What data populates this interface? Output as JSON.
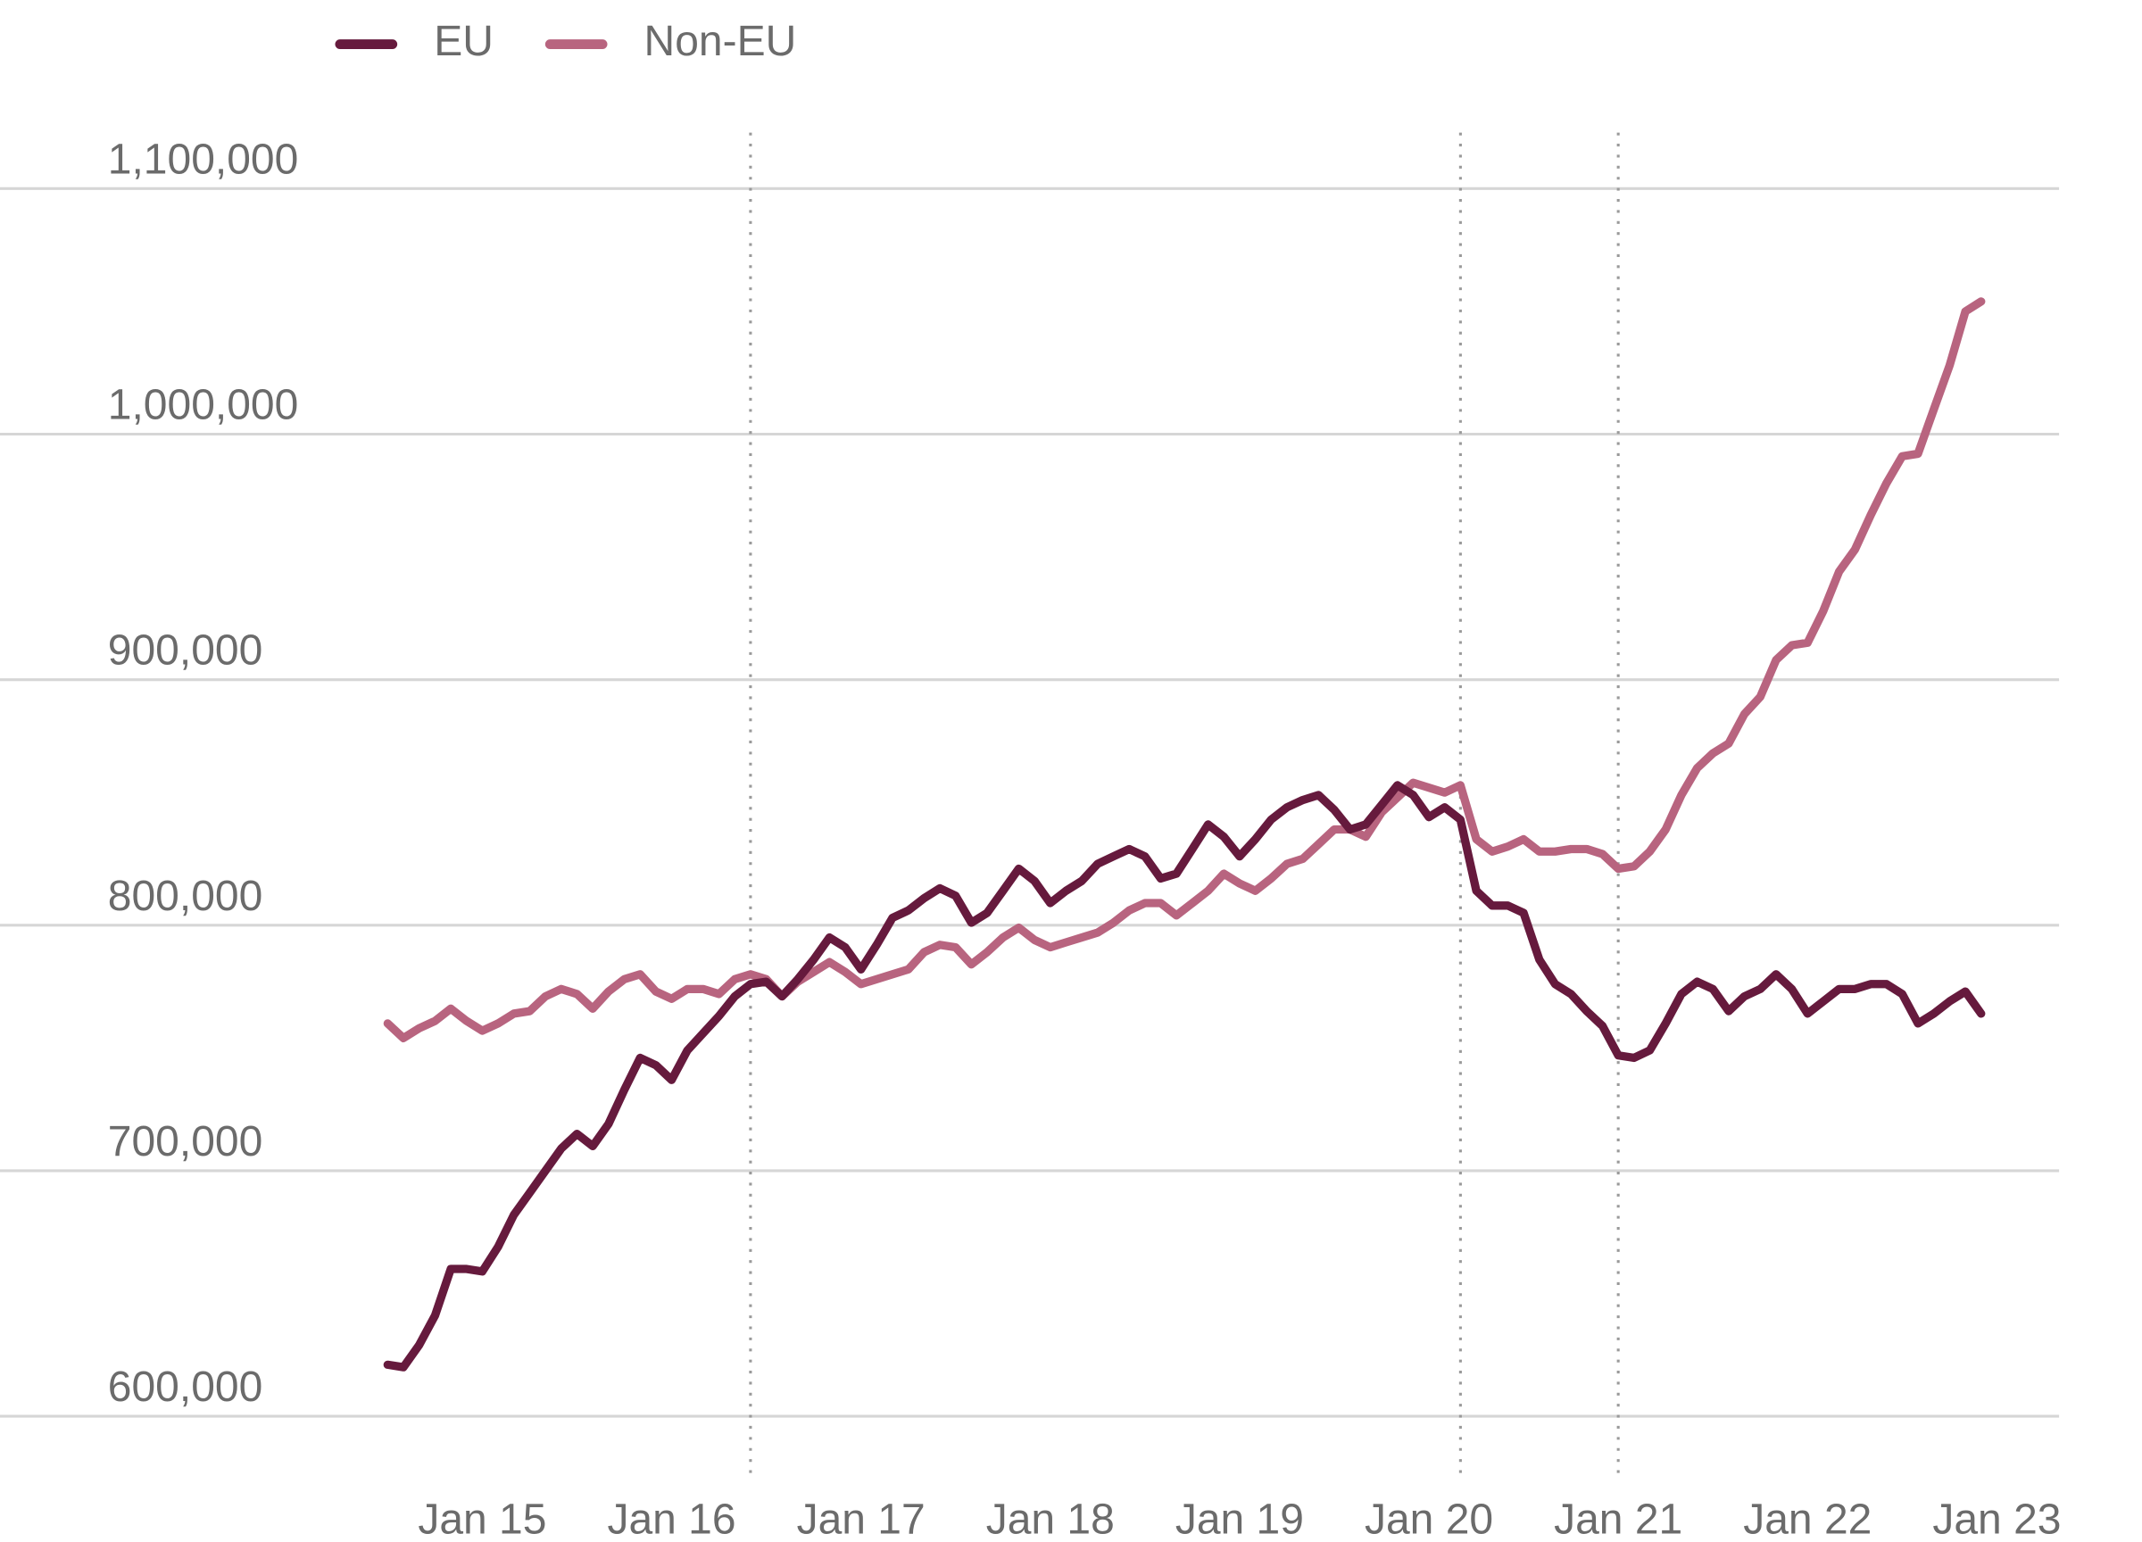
{
  "chart_data": {
    "type": "line",
    "title": "",
    "xlabel": "",
    "ylabel": "",
    "legend_position": "top-left",
    "grid": "horizontal",
    "ylim": [
      580000,
      1120000
    ],
    "y_ticks": [
      600000,
      700000,
      800000,
      900000,
      1000000,
      1100000
    ],
    "y_tick_labels": [
      "600,000",
      "700,000",
      "800,000",
      "900,000",
      "1,000,000",
      "1,100,000"
    ],
    "x_ticks": [
      "2015-01",
      "2016-01",
      "2017-01",
      "2018-01",
      "2019-01",
      "2020-01",
      "2021-01",
      "2022-01",
      "2023-01"
    ],
    "x_tick_labels": [
      "Jan 15",
      "Jan 16",
      "Jan 17",
      "Jan 18",
      "Jan 19",
      "Jan 20",
      "Jan 21",
      "Jan 22",
      "Jan 23"
    ],
    "reference_lines": [
      "2016-06",
      "2020-03",
      "2021-01"
    ],
    "x": [
      "2014-07",
      "2014-08",
      "2014-09",
      "2014-10",
      "2014-11",
      "2014-12",
      "2015-01",
      "2015-02",
      "2015-03",
      "2015-04",
      "2015-05",
      "2015-06",
      "2015-07",
      "2015-08",
      "2015-09",
      "2015-10",
      "2015-11",
      "2015-12",
      "2016-01",
      "2016-02",
      "2016-03",
      "2016-04",
      "2016-05",
      "2016-06",
      "2016-07",
      "2016-08",
      "2016-09",
      "2016-10",
      "2016-11",
      "2016-12",
      "2017-01",
      "2017-02",
      "2017-03",
      "2017-04",
      "2017-05",
      "2017-06",
      "2017-07",
      "2017-08",
      "2017-09",
      "2017-10",
      "2017-11",
      "2017-12",
      "2018-01",
      "2018-02",
      "2018-03",
      "2018-04",
      "2018-05",
      "2018-06",
      "2018-07",
      "2018-08",
      "2018-09",
      "2018-10",
      "2018-11",
      "2018-12",
      "2019-01",
      "2019-02",
      "2019-03",
      "2019-04",
      "2019-05",
      "2019-06",
      "2019-07",
      "2019-08",
      "2019-09",
      "2019-10",
      "2019-11",
      "2019-12",
      "2020-01",
      "2020-02",
      "2020-03",
      "2020-04",
      "2020-05",
      "2020-06",
      "2020-07",
      "2020-08",
      "2020-09",
      "2020-10",
      "2020-11",
      "2020-12",
      "2021-01",
      "2021-02",
      "2021-03",
      "2021-04",
      "2021-05",
      "2021-06",
      "2021-07",
      "2021-08",
      "2021-09",
      "2021-10",
      "2021-11",
      "2021-12",
      "2022-01",
      "2022-02",
      "2022-03",
      "2022-04",
      "2022-05",
      "2022-06",
      "2022-07",
      "2022-08",
      "2022-09",
      "2022-10",
      "2022-11",
      "2022-12"
    ],
    "series": [
      {
        "name": "EU",
        "color": "#661a3d",
        "values": [
          621000,
          620000,
          629000,
          641000,
          660000,
          660000,
          659000,
          669000,
          682000,
          691000,
          700000,
          709000,
          715000,
          710000,
          719000,
          733000,
          746000,
          743000,
          737000,
          749000,
          756000,
          763000,
          771000,
          776000,
          777000,
          771000,
          778000,
          786000,
          795000,
          791000,
          782000,
          792000,
          803000,
          806000,
          811000,
          815000,
          812000,
          801000,
          805000,
          814000,
          823000,
          818000,
          809000,
          814000,
          818000,
          825000,
          828000,
          831000,
          828000,
          819000,
          821000,
          831000,
          841000,
          836000,
          828000,
          835000,
          843000,
          848000,
          851000,
          853000,
          847000,
          839000,
          841000,
          849000,
          857000,
          853000,
          844000,
          848000,
          843000,
          814000,
          808000,
          808000,
          805000,
          786000,
          776000,
          772000,
          765000,
          759000,
          747000,
          746000,
          749000,
          760000,
          772000,
          777000,
          774000,
          765000,
          771000,
          774000,
          780000,
          774000,
          764000,
          769000,
          774000,
          774000,
          776000,
          776000,
          772000,
          760000,
          764000,
          769000,
          773000,
          764000
        ]
      },
      {
        "name": "Non-EU",
        "color": "#b8647f",
        "values": [
          760000,
          754000,
          758000,
          761000,
          766000,
          761000,
          757000,
          760000,
          764000,
          765000,
          771000,
          774000,
          772000,
          766000,
          773000,
          778000,
          780000,
          773000,
          770000,
          774000,
          774000,
          772000,
          778000,
          780000,
          778000,
          771000,
          777000,
          781000,
          785000,
          781000,
          776000,
          778000,
          780000,
          782000,
          789000,
          792000,
          791000,
          784000,
          789000,
          795000,
          799000,
          794000,
          791000,
          793000,
          795000,
          797000,
          801000,
          806000,
          809000,
          809000,
          804000,
          809000,
          814000,
          821000,
          817000,
          814000,
          819000,
          825000,
          827000,
          833000,
          839000,
          839000,
          836000,
          846000,
          852000,
          858000,
          856000,
          854000,
          857000,
          835000,
          830000,
          832000,
          835000,
          830000,
          830000,
          831000,
          831000,
          829000,
          823000,
          824000,
          830000,
          839000,
          853000,
          864000,
          870000,
          874000,
          886000,
          893000,
          908000,
          914000,
          915000,
          928000,
          944000,
          953000,
          967000,
          980000,
          991000,
          992000,
          1010000,
          1028000,
          1050000,
          1054000
        ]
      }
    ]
  }
}
